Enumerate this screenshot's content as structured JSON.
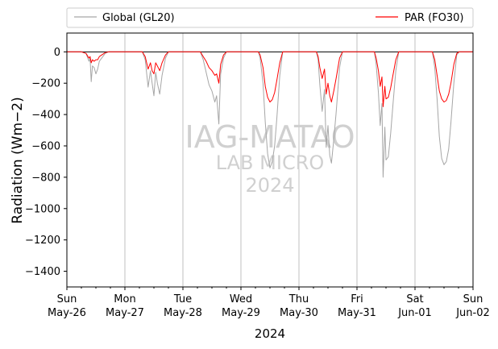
{
  "chart_data": {
    "type": "line",
    "xlabel": "2024",
    "ylabel": "Radiation (Wm−2)",
    "ylim": [
      -1500,
      120
    ],
    "yticks": [
      0,
      -200,
      -400,
      -600,
      -800,
      -1000,
      -1200,
      -1400
    ],
    "xlim_days": [
      0,
      7
    ],
    "x_ticks": [
      {
        "day": "Sun",
        "date": "May-26"
      },
      {
        "day": "Mon",
        "date": "May-27"
      },
      {
        "day": "Tue",
        "date": "May-28"
      },
      {
        "day": "Wed",
        "date": "May-29"
      },
      {
        "day": "Thu",
        "date": "May-30"
      },
      {
        "day": "Fri",
        "date": "May-31"
      },
      {
        "day": "Sat",
        "date": "Jun-01"
      },
      {
        "day": "Sun",
        "date": "Jun-02"
      }
    ],
    "grid": "vertical-major",
    "reference_line_y": 0,
    "legend": {
      "placement": "top-outside"
    },
    "watermark": [
      "IAG-MATAO",
      "LAB MICRO",
      "2024"
    ],
    "series": [
      {
        "name": "Global (GL20)",
        "color": "#a6a6a6",
        "points": [
          [
            0,
            0
          ],
          [
            0.25,
            0
          ],
          [
            0.33,
            -10
          ],
          [
            0.38,
            -60
          ],
          [
            0.4,
            -40
          ],
          [
            0.42,
            -190
          ],
          [
            0.44,
            -90
          ],
          [
            0.47,
            -100
          ],
          [
            0.5,
            -140
          ],
          [
            0.53,
            -110
          ],
          [
            0.56,
            -60
          ],
          [
            0.6,
            -40
          ],
          [
            0.66,
            -10
          ],
          [
            0.72,
            0
          ],
          [
            1.3,
            0
          ],
          [
            1.35,
            -50
          ],
          [
            1.4,
            -225
          ],
          [
            1.44,
            -120
          ],
          [
            1.47,
            -200
          ],
          [
            1.5,
            -280
          ],
          [
            1.53,
            -130
          ],
          [
            1.56,
            -200
          ],
          [
            1.6,
            -270
          ],
          [
            1.64,
            -150
          ],
          [
            1.7,
            -40
          ],
          [
            1.75,
            0
          ],
          [
            2.3,
            0
          ],
          [
            2.35,
            -50
          ],
          [
            2.4,
            -130
          ],
          [
            2.45,
            -210
          ],
          [
            2.5,
            -250
          ],
          [
            2.55,
            -320
          ],
          [
            2.58,
            -280
          ],
          [
            2.62,
            -460
          ],
          [
            2.65,
            -140
          ],
          [
            2.7,
            -40
          ],
          [
            2.75,
            0
          ],
          [
            3.3,
            0
          ],
          [
            3.33,
            -40
          ],
          [
            3.38,
            -200
          ],
          [
            3.42,
            -450
          ],
          [
            3.46,
            -650
          ],
          [
            3.5,
            -740
          ],
          [
            3.54,
            -700
          ],
          [
            3.58,
            -600
          ],
          [
            3.62,
            -420
          ],
          [
            3.67,
            -150
          ],
          [
            3.72,
            0
          ],
          [
            4.3,
            0
          ],
          [
            4.33,
            -50
          ],
          [
            4.36,
            -210
          ],
          [
            4.4,
            -380
          ],
          [
            4.44,
            -240
          ],
          [
            4.47,
            -610
          ],
          [
            4.5,
            -470
          ],
          [
            4.53,
            -660
          ],
          [
            4.56,
            -710
          ],
          [
            4.6,
            -560
          ],
          [
            4.64,
            -390
          ],
          [
            4.7,
            -100
          ],
          [
            4.75,
            0
          ],
          [
            5.3,
            0
          ],
          [
            5.33,
            -80
          ],
          [
            5.37,
            -260
          ],
          [
            5.4,
            -470
          ],
          [
            5.43,
            -330
          ],
          [
            5.45,
            -800
          ],
          [
            5.48,
            -480
          ],
          [
            5.5,
            -690
          ],
          [
            5.54,
            -670
          ],
          [
            5.58,
            -520
          ],
          [
            5.62,
            -340
          ],
          [
            5.67,
            -120
          ],
          [
            5.72,
            0
          ],
          [
            6.3,
            0
          ],
          [
            6.34,
            -100
          ],
          [
            6.38,
            -300
          ],
          [
            6.42,
            -540
          ],
          [
            6.46,
            -680
          ],
          [
            6.5,
            -720
          ],
          [
            6.54,
            -700
          ],
          [
            6.58,
            -620
          ],
          [
            6.62,
            -450
          ],
          [
            6.67,
            -200
          ],
          [
            6.72,
            -20
          ],
          [
            6.76,
            0
          ],
          [
            7,
            0
          ]
        ]
      },
      {
        "name": "PAR (FO30)",
        "color": "#ff0000",
        "points": [
          [
            0,
            0
          ],
          [
            0.25,
            0
          ],
          [
            0.33,
            -10
          ],
          [
            0.38,
            -40
          ],
          [
            0.4,
            -30
          ],
          [
            0.42,
            -70
          ],
          [
            0.44,
            -50
          ],
          [
            0.47,
            -60
          ],
          [
            0.5,
            -50
          ],
          [
            0.53,
            -50
          ],
          [
            0.56,
            -30
          ],
          [
            0.6,
            -20
          ],
          [
            0.66,
            -5
          ],
          [
            0.72,
            0
          ],
          [
            1.3,
            0
          ],
          [
            1.35,
            -30
          ],
          [
            1.4,
            -110
          ],
          [
            1.44,
            -70
          ],
          [
            1.47,
            -120
          ],
          [
            1.5,
            -140
          ],
          [
            1.53,
            -70
          ],
          [
            1.56,
            -90
          ],
          [
            1.6,
            -120
          ],
          [
            1.64,
            -70
          ],
          [
            1.7,
            -20
          ],
          [
            1.75,
            0
          ],
          [
            2.3,
            0
          ],
          [
            2.35,
            -30
          ],
          [
            2.4,
            -60
          ],
          [
            2.45,
            -100
          ],
          [
            2.5,
            -120
          ],
          [
            2.55,
            -150
          ],
          [
            2.58,
            -140
          ],
          [
            2.62,
            -200
          ],
          [
            2.65,
            -80
          ],
          [
            2.7,
            -20
          ],
          [
            2.75,
            0
          ],
          [
            3.3,
            0
          ],
          [
            3.33,
            -20
          ],
          [
            3.38,
            -100
          ],
          [
            3.42,
            -220
          ],
          [
            3.46,
            -290
          ],
          [
            3.5,
            -320
          ],
          [
            3.54,
            -305
          ],
          [
            3.58,
            -260
          ],
          [
            3.62,
            -180
          ],
          [
            3.67,
            -70
          ],
          [
            3.72,
            0
          ],
          [
            4.3,
            0
          ],
          [
            4.33,
            -30
          ],
          [
            4.36,
            -100
          ],
          [
            4.4,
            -170
          ],
          [
            4.44,
            -110
          ],
          [
            4.47,
            -270
          ],
          [
            4.5,
            -200
          ],
          [
            4.53,
            -280
          ],
          [
            4.56,
            -320
          ],
          [
            4.6,
            -250
          ],
          [
            4.64,
            -170
          ],
          [
            4.7,
            -40
          ],
          [
            4.75,
            0
          ],
          [
            5.3,
            0
          ],
          [
            5.33,
            -40
          ],
          [
            5.37,
            -120
          ],
          [
            5.4,
            -220
          ],
          [
            5.43,
            -160
          ],
          [
            5.45,
            -350
          ],
          [
            5.48,
            -220
          ],
          [
            5.5,
            -300
          ],
          [
            5.54,
            -290
          ],
          [
            5.58,
            -230
          ],
          [
            5.62,
            -150
          ],
          [
            5.67,
            -50
          ],
          [
            5.72,
            0
          ],
          [
            6.3,
            0
          ],
          [
            6.34,
            -50
          ],
          [
            6.38,
            -150
          ],
          [
            6.42,
            -250
          ],
          [
            6.46,
            -300
          ],
          [
            6.5,
            -320
          ],
          [
            6.54,
            -310
          ],
          [
            6.58,
            -270
          ],
          [
            6.62,
            -200
          ],
          [
            6.67,
            -80
          ],
          [
            6.72,
            -10
          ],
          [
            6.76,
            0
          ],
          [
            7,
            0
          ]
        ]
      }
    ]
  }
}
